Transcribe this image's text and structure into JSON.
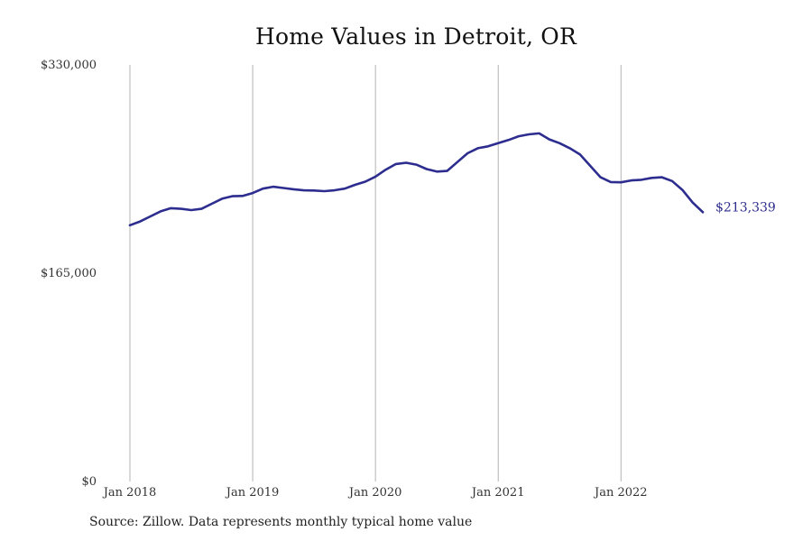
{
  "chart_data": {
    "type": "line",
    "title": "Home Values in Detroit, OR",
    "source_note": "Source: Zillow. Data represents monthly typical home value",
    "y_ticks": [
      {
        "value": 330000,
        "label": "$330,000"
      },
      {
        "value": 165000,
        "label": "$165,000"
      },
      {
        "value": 0,
        "label": "$0"
      }
    ],
    "x_ticks": [
      {
        "value": "2018-01",
        "label": "Jan 2018"
      },
      {
        "value": "2019-01",
        "label": "Jan 2019"
      },
      {
        "value": "2020-01",
        "label": "Jan 2020"
      },
      {
        "value": "2021-01",
        "label": "Jan 2021"
      },
      {
        "value": "2022-01",
        "label": "Jan 2022"
      }
    ],
    "ylim": [
      0,
      330000
    ],
    "xlim": [
      "2018-01",
      "2022-09"
    ],
    "grid": "vertical lines at each x tick",
    "line_color": "#2d2d8f",
    "end_label": "$213,339",
    "series": [
      {
        "x": [
          "2018-01",
          "2018-02",
          "2018-03",
          "2018-04",
          "2018-05",
          "2018-06",
          "2018-07",
          "2018-08",
          "2018-09",
          "2018-10",
          "2018-11",
          "2018-12",
          "2019-01",
          "2019-02",
          "2019-03",
          "2019-04",
          "2019-05",
          "2019-06",
          "2019-07",
          "2019-08",
          "2019-09",
          "2019-10",
          "2019-11",
          "2019-12",
          "2020-01",
          "2020-02",
          "2020-03",
          "2020-04",
          "2020-05",
          "2020-06",
          "2020-07",
          "2020-08",
          "2020-09",
          "2020-10",
          "2020-11",
          "2020-12",
          "2021-01",
          "2021-02",
          "2021-03",
          "2021-04",
          "2021-05",
          "2021-06",
          "2021-07",
          "2021-08",
          "2021-09",
          "2021-10",
          "2021-11",
          "2021-12",
          "2022-01",
          "2022-02",
          "2022-03",
          "2022-04",
          "2022-05",
          "2022-06",
          "2022-07",
          "2022-08",
          "2022-09"
        ],
        "values": [
          203000,
          206000,
          210000,
          214000,
          216500,
          216000,
          215000,
          216000,
          220000,
          224000,
          226000,
          226200,
          228500,
          232000,
          233500,
          232500,
          231500,
          230700,
          230500,
          230000,
          230700,
          232000,
          235000,
          237500,
          241500,
          247000,
          251500,
          252500,
          251000,
          247500,
          245500,
          246000,
          253000,
          260000,
          264000,
          265500,
          268000,
          270500,
          273500,
          275000,
          275800,
          271000,
          268000,
          264000,
          259000,
          250000,
          241000,
          237200,
          237000,
          238500,
          239000,
          240500,
          241000,
          238000,
          231000,
          221000,
          213339
        ]
      }
    ]
  }
}
